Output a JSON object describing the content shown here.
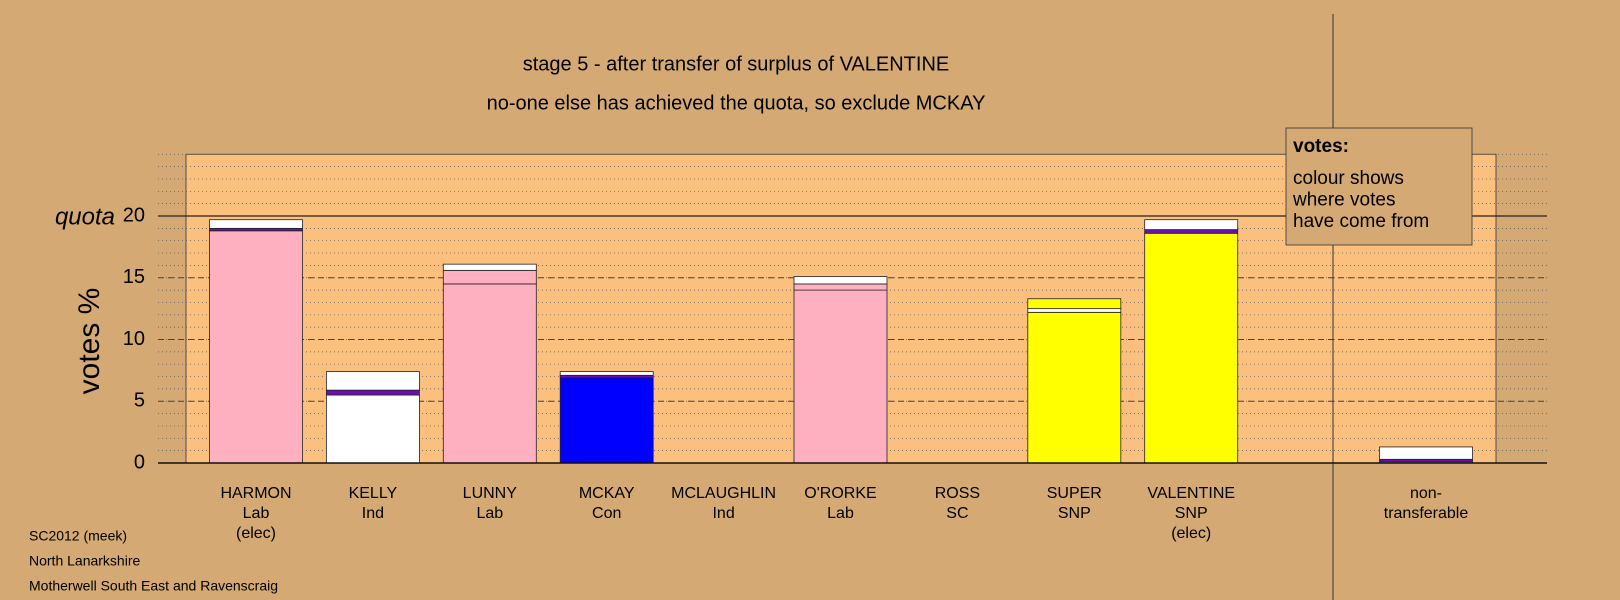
{
  "chart_data": {
    "type": "stacked-bar",
    "title": "stage 5 - after transfer of surplus of VALENTINE",
    "subtitle": "no-one else has achieved the quota, so exclude MCKAY",
    "y_label": "votes %",
    "ylim": [
      0,
      25
    ],
    "yticks": [
      0,
      5,
      10,
      15,
      20
    ],
    "minor_grid_step": 1,
    "grid": true,
    "quota": {
      "label": "quota",
      "value": 20
    },
    "categories": [
      [
        "HARMON",
        "Lab",
        "(elec)"
      ],
      [
        "KELLY",
        "Ind"
      ],
      [
        "LUNNY",
        "Lab"
      ],
      [
        "MCKAY",
        "Con"
      ],
      [
        "MCLAUGHLIN",
        "Ind"
      ],
      [
        "O'RORKE",
        "Lab"
      ],
      [
        "ROSS",
        "SC"
      ],
      [
        "SUPER",
        "SNP"
      ],
      [
        "VALENTINE",
        "SNP",
        "(elec)"
      ]
    ],
    "stacks": [
      [
        {
          "value": 18.8,
          "color": "#ffb0c0"
        },
        {
          "value": 0.2,
          "color": "#6a10b0"
        },
        {
          "value": 0.7,
          "color": "#ffffff"
        }
      ],
      [
        {
          "value": 5.5,
          "color": "#ffffff"
        },
        {
          "value": 0.4,
          "color": "#6a10b0"
        },
        {
          "value": 1.5,
          "color": "#ffffff"
        }
      ],
      [
        {
          "value": 14.5,
          "color": "#ffb0c0"
        },
        {
          "value": 1.1,
          "color": "#ffb0c0"
        },
        {
          "value": 0.5,
          "color": "#ffffff"
        }
      ],
      [
        {
          "value": 6.9,
          "color": "#0000ff"
        },
        {
          "value": 0.2,
          "color": "#6a10b0"
        },
        {
          "value": 0.3,
          "color": "#ffffff"
        }
      ],
      [],
      [
        {
          "value": 14.0,
          "color": "#ffb0c0"
        },
        {
          "value": 0.5,
          "color": "#ffb0c0"
        },
        {
          "value": 0.6,
          "color": "#ffffff"
        }
      ],
      [],
      [
        {
          "value": 12.2,
          "color": "#ffff00"
        },
        {
          "value": 0.3,
          "color": "#ffffff"
        },
        {
          "value": 0.8,
          "color": "#ffff00"
        }
      ],
      [
        {
          "value": 18.6,
          "color": "#ffff00"
        },
        {
          "value": 0.3,
          "color": "#6a10b0"
        },
        {
          "value": 0.8,
          "color": "#ffffff"
        }
      ]
    ],
    "aside": {
      "label": [
        "non-",
        "transferable"
      ],
      "stack": [
        {
          "value": 0.1,
          "color": "#ffffff"
        },
        {
          "value": 0.2,
          "color": "#6a10b0"
        },
        {
          "value": 1.0,
          "color": "#ffffff"
        }
      ]
    },
    "note": {
      "title": "votes:",
      "lines": [
        "colour shows",
        "where votes",
        "have come from"
      ]
    },
    "footnotes": [
      "SC2012 (meek)",
      "North Lanarkshire",
      "Motherwell South East and Ravenscraig"
    ]
  }
}
